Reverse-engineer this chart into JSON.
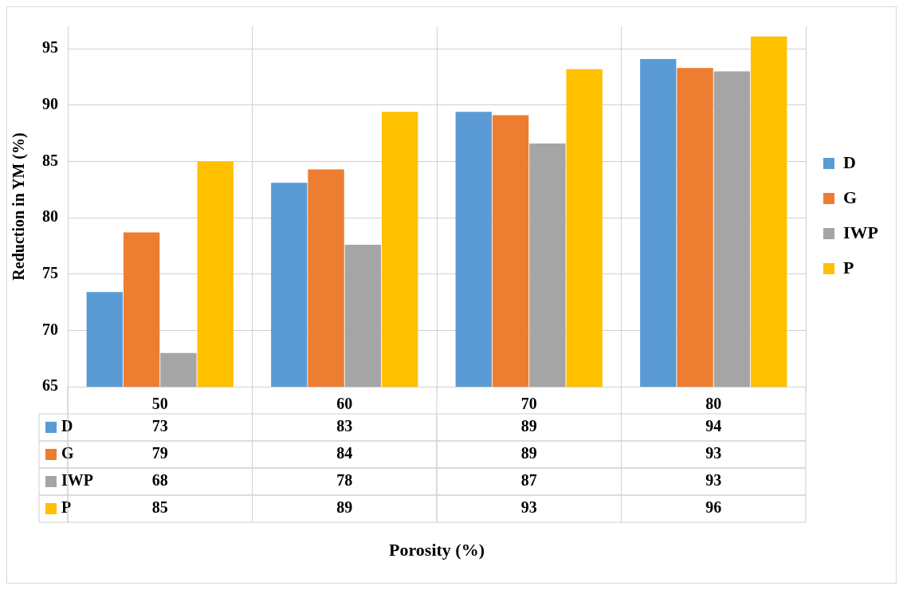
{
  "chart_data": {
    "type": "bar",
    "ylabel": "Reduction in YM (%)",
    "annotations": [
      "Porosity (%)"
    ],
    "categories": [
      "50",
      "60",
      "70",
      "80"
    ],
    "series": [
      {
        "name": "D",
        "color": "#5b9bd5",
        "values": [
          73.4,
          83.1,
          89.4,
          94.1
        ],
        "value_labels": [
          "73",
          "83",
          "89",
          "94"
        ]
      },
      {
        "name": "G",
        "color": "#ed7d31",
        "values": [
          78.7,
          84.3,
          89.1,
          93.3
        ],
        "value_labels": [
          "79",
          "84",
          "89",
          "93"
        ]
      },
      {
        "name": "IWP",
        "color": "#a5a5a5",
        "values": [
          68.0,
          77.6,
          86.6,
          93.0
        ],
        "value_labels": [
          "68",
          "78",
          "87",
          "93"
        ]
      },
      {
        "name": "P",
        "color": "#ffc000",
        "values": [
          85.0,
          89.4,
          93.2,
          96.1
        ],
        "value_labels": [
          "85",
          "89",
          "93",
          "96"
        ]
      }
    ],
    "ylim": [
      65,
      97
    ],
    "yticks": [
      65,
      70,
      75,
      80,
      85,
      90,
      95
    ],
    "grid": true,
    "legend": "right"
  }
}
